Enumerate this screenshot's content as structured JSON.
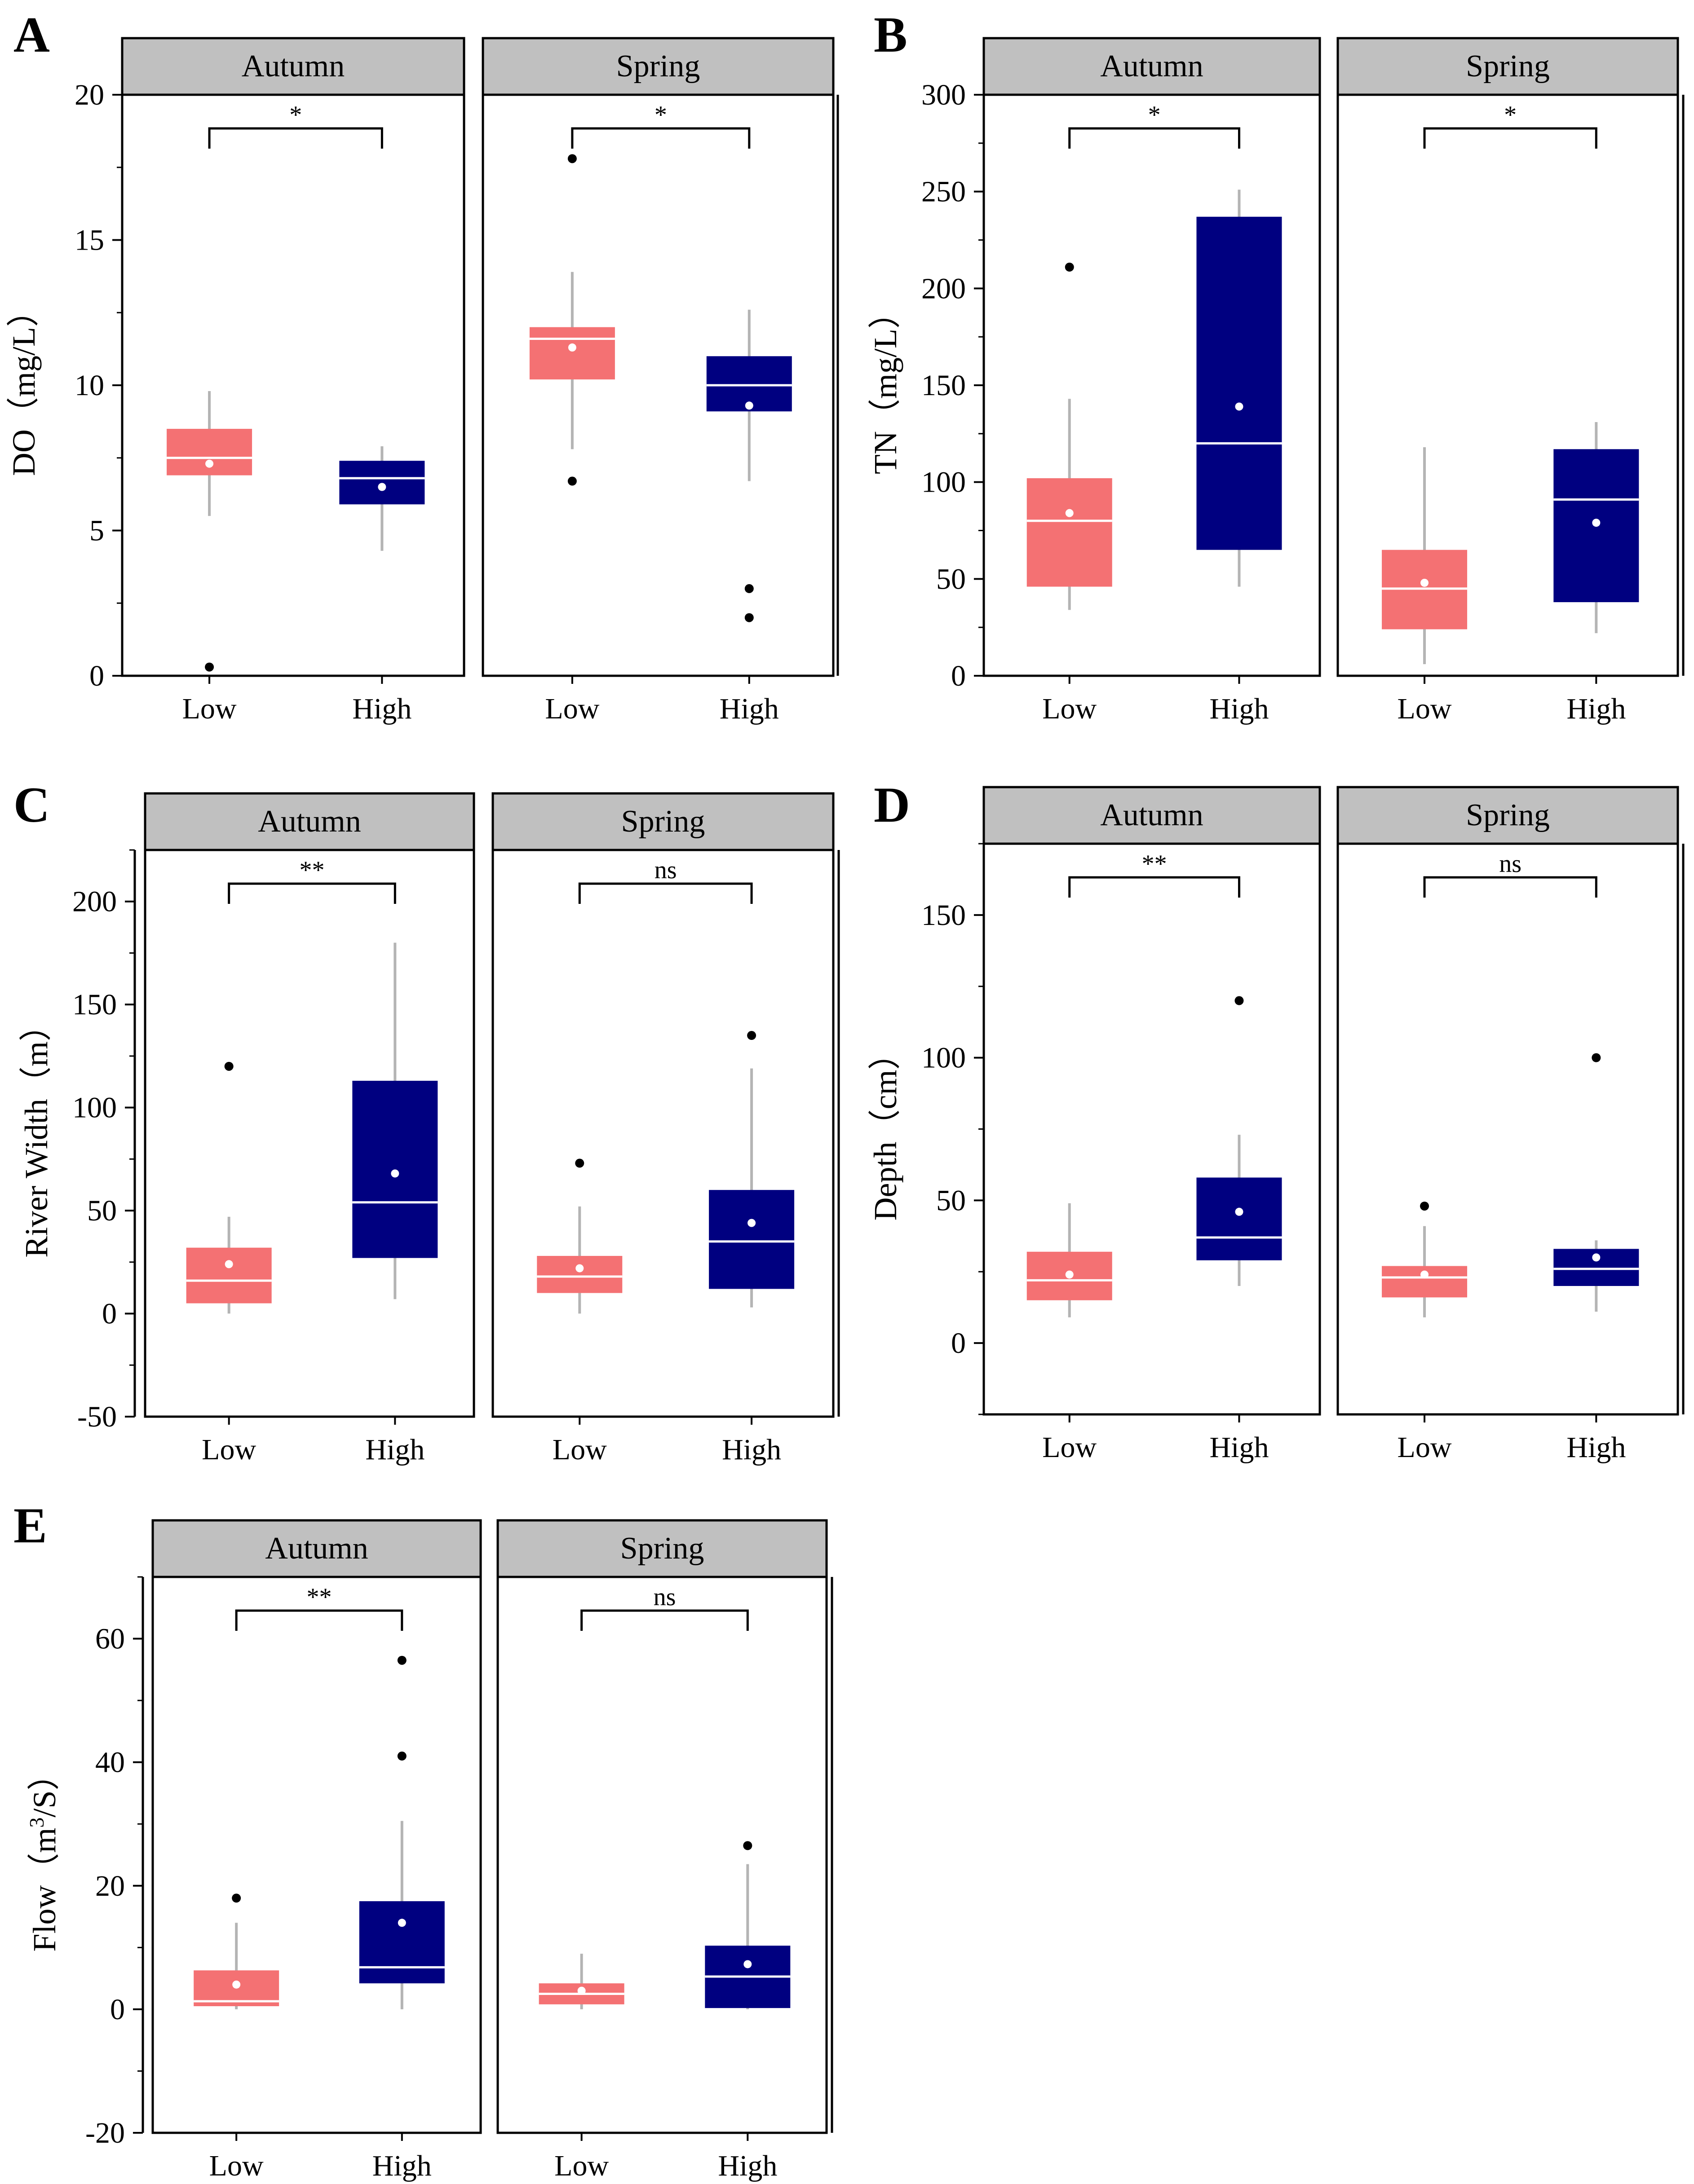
{
  "chart_data": [
    {
      "panel": "A",
      "type": "box",
      "ylabel": "DO（mg/L）",
      "ylim": [
        0,
        20
      ],
      "yticks": [
        0,
        5,
        10,
        15,
        20
      ],
      "categories": [
        "Low",
        "High"
      ],
      "colors": {
        "Low": "#F47173",
        "High": "#000080"
      },
      "facets": [
        {
          "strip": "Autumn",
          "significance": "*",
          "boxes": [
            {
              "category": "Low",
              "whisker_low": 5.5,
              "q1": 6.9,
              "median": 7.5,
              "q3": 8.5,
              "whisker_high": 9.8,
              "mean": 7.3,
              "outliers": [
                0.3
              ]
            },
            {
              "category": "High",
              "whisker_low": 4.3,
              "q1": 5.9,
              "median": 6.8,
              "q3": 7.4,
              "whisker_high": 7.9,
              "mean": 6.5,
              "outliers": []
            }
          ]
        },
        {
          "strip": "Spring",
          "significance": "*",
          "boxes": [
            {
              "category": "Low",
              "whisker_low": 7.8,
              "q1": 10.2,
              "median": 11.6,
              "q3": 12.0,
              "whisker_high": 13.9,
              "mean": 11.3,
              "outliers": [
                6.7,
                17.8
              ]
            },
            {
              "category": "High",
              "whisker_low": 6.7,
              "q1": 9.1,
              "median": 10.0,
              "q3": 11.0,
              "whisker_high": 12.6,
              "mean": 9.3,
              "outliers": [
                3.0,
                2.0
              ]
            }
          ]
        }
      ]
    },
    {
      "panel": "B",
      "type": "box",
      "ylabel": "TN（mg/L）",
      "ylim": [
        0,
        300
      ],
      "yticks": [
        0,
        50,
        100,
        150,
        200,
        250,
        300
      ],
      "categories": [
        "Low",
        "High"
      ],
      "colors": {
        "Low": "#F47173",
        "High": "#000080"
      },
      "facets": [
        {
          "strip": "Autumn",
          "significance": "*",
          "boxes": [
            {
              "category": "Low",
              "whisker_low": 34,
              "q1": 46,
              "median": 80,
              "q3": 102,
              "whisker_high": 143,
              "mean": 84,
              "outliers": [
                211
              ]
            },
            {
              "category": "High",
              "whisker_low": 46,
              "q1": 65,
              "median": 120,
              "q3": 237,
              "whisker_high": 251,
              "mean": 139,
              "outliers": []
            }
          ]
        },
        {
          "strip": "Spring",
          "significance": "*",
          "boxes": [
            {
              "category": "Low",
              "whisker_low": 6,
              "q1": 24,
              "median": 45,
              "q3": 65,
              "whisker_high": 118,
              "mean": 48,
              "outliers": []
            },
            {
              "category": "High",
              "whisker_low": 22,
              "q1": 38,
              "median": 91,
              "q3": 117,
              "whisker_high": 131,
              "mean": 79,
              "outliers": []
            }
          ]
        }
      ]
    },
    {
      "panel": "C",
      "type": "box",
      "ylabel": "River Width（m）",
      "ylim": [
        -50,
        225
      ],
      "yticks": [
        -50,
        0,
        50,
        100,
        150,
        200
      ],
      "categories": [
        "Low",
        "High"
      ],
      "colors": {
        "Low": "#F47173",
        "High": "#000080"
      },
      "facets": [
        {
          "strip": "Autumn",
          "significance": "**",
          "boxes": [
            {
              "category": "Low",
              "whisker_low": 0,
              "q1": 5,
              "median": 16,
              "q3": 32,
              "whisker_high": 47,
              "mean": 24,
              "outliers": [
                120
              ]
            },
            {
              "category": "High",
              "whisker_low": 7,
              "q1": 27,
              "median": 54,
              "q3": 113,
              "whisker_high": 180,
              "mean": 68,
              "outliers": []
            }
          ]
        },
        {
          "strip": "Spring",
          "significance": "ns",
          "boxes": [
            {
              "category": "Low",
              "whisker_low": 0,
              "q1": 10,
              "median": 18,
              "q3": 28,
              "whisker_high": 52,
              "mean": 22,
              "outliers": [
                73
              ]
            },
            {
              "category": "High",
              "whisker_low": 3,
              "q1": 12,
              "median": 35,
              "q3": 60,
              "whisker_high": 119,
              "mean": 44,
              "outliers": [
                135
              ]
            }
          ]
        }
      ]
    },
    {
      "panel": "D",
      "type": "box",
      "ylabel": "Depth（cm）",
      "ylim": [
        -25,
        175
      ],
      "yticks": [
        0,
        50,
        100,
        150
      ],
      "categories": [
        "Low",
        "High"
      ],
      "colors": {
        "Low": "#F47173",
        "High": "#000080"
      },
      "facets": [
        {
          "strip": "Autumn",
          "significance": "**",
          "boxes": [
            {
              "category": "Low",
              "whisker_low": 9,
              "q1": 15,
              "median": 22,
              "q3": 32,
              "whisker_high": 49,
              "mean": 24,
              "outliers": []
            },
            {
              "category": "High",
              "whisker_low": 20,
              "q1": 29,
              "median": 37,
              "q3": 58,
              "whisker_high": 73,
              "mean": 46,
              "outliers": [
                120
              ]
            }
          ]
        },
        {
          "strip": "Spring",
          "significance": "ns",
          "boxes": [
            {
              "category": "Low",
              "whisker_low": 9,
              "q1": 16,
              "median": 23,
              "q3": 27,
              "whisker_high": 41,
              "mean": 24,
              "outliers": [
                48
              ]
            },
            {
              "category": "High",
              "whisker_low": 11,
              "q1": 20,
              "median": 26,
              "q3": 33,
              "whisker_high": 36,
              "mean": 30,
              "outliers": [
                100
              ]
            }
          ]
        }
      ]
    },
    {
      "panel": "E",
      "type": "box",
      "ylabel": "Flow（m3/S）",
      "ylabel_parts": {
        "before": "Flow（m",
        "sup": "3",
        "after": "/S）"
      },
      "ylim": [
        -20,
        70
      ],
      "yticks": [
        -20,
        0,
        20,
        40,
        60
      ],
      "categories": [
        "Low",
        "High"
      ],
      "colors": {
        "Low": "#F47173",
        "High": "#000080"
      },
      "facets": [
        {
          "strip": "Autumn",
          "significance": "**",
          "boxes": [
            {
              "category": "Low",
              "whisker_low": 0,
              "q1": 0.5,
              "median": 1.3,
              "q3": 6.3,
              "whisker_high": 14,
              "mean": 4,
              "outliers": [
                18
              ]
            },
            {
              "category": "High",
              "whisker_low": 0,
              "q1": 4.2,
              "median": 6.8,
              "q3": 17.5,
              "whisker_high": 30.5,
              "mean": 14,
              "outliers": [
                41,
                56.5
              ]
            }
          ]
        },
        {
          "strip": "Spring",
          "significance": "ns",
          "boxes": [
            {
              "category": "Low",
              "whisker_low": 0,
              "q1": 0.8,
              "median": 2.5,
              "q3": 4.2,
              "whisker_high": 9,
              "mean": 3,
              "outliers": []
            },
            {
              "category": "High",
              "whisker_low": 0,
              "q1": 0.2,
              "median": 5.3,
              "q3": 10.3,
              "whisker_high": 23.5,
              "mean": 7.3,
              "outliers": [
                26.5
              ]
            }
          ]
        }
      ]
    }
  ]
}
